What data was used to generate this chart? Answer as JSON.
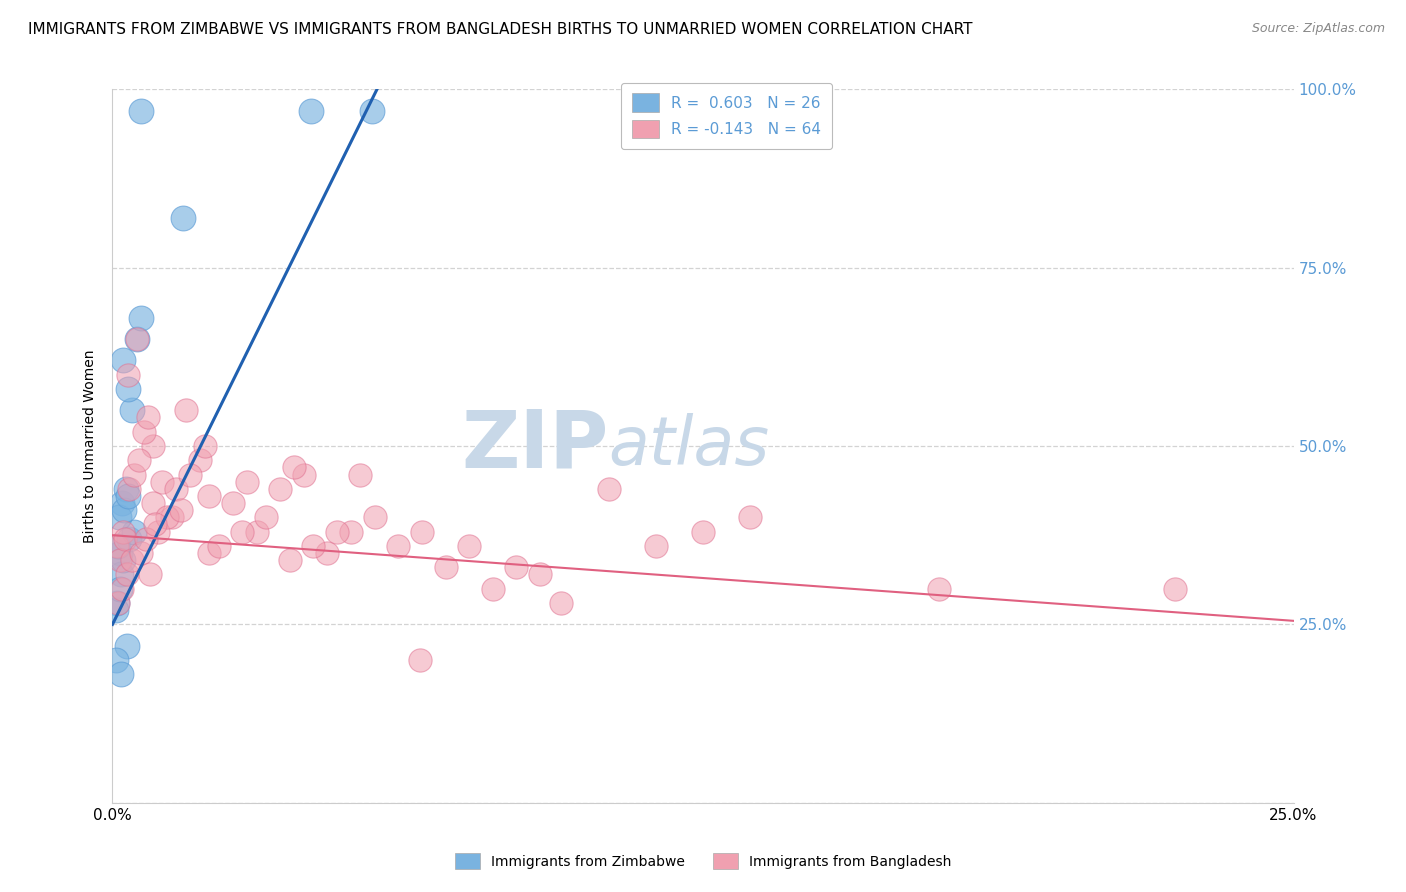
{
  "title": "IMMIGRANTS FROM ZIMBABWE VS IMMIGRANTS FROM BANGLADESH BIRTHS TO UNMARRIED WOMEN CORRELATION CHART",
  "source": "Source: ZipAtlas.com",
  "ylabel": "Births to Unmarried Women",
  "legend_entries": [
    {
      "label": "R =  0.603   N = 26",
      "color": "#a8c4e0"
    },
    {
      "label": "R = -0.143   N = 64",
      "color": "#f4a0b0"
    }
  ],
  "watermark_zip": "ZIP",
  "watermark_atlas": "atlas",
  "watermark_color": "#c8d8e8",
  "blue_color": "#7ab3e0",
  "blue_edge_color": "#5b9bd5",
  "pink_color": "#f0a0b0",
  "pink_edge_color": "#e07090",
  "blue_line_color": "#2060b0",
  "pink_line_color": "#e06080",
  "background_color": "#ffffff",
  "grid_color": "#c8c8c8",
  "ytick_color": "#5b9bd5",
  "ytick_vals": [
    25,
    50,
    75,
    100
  ],
  "ytick_labels": [
    "25.0%",
    "50.0%",
    "75.0%",
    "100.0%"
  ],
  "xtick_vals": [
    0,
    25
  ],
  "xtick_labels": [
    "0.0%",
    "25.0%"
  ],
  "zimbabwe_x": [
    0.6,
    1.5,
    4.2,
    5.5,
    0.15,
    0.18,
    0.22,
    0.12,
    0.35,
    0.45,
    0.2,
    0.28,
    0.1,
    0.08,
    0.16,
    0.42,
    0.32,
    0.22,
    0.52,
    0.6,
    0.3,
    0.08,
    0.18,
    0.14,
    0.24,
    0.33
  ],
  "zimbabwe_y": [
    97,
    82,
    97,
    97,
    35,
    32,
    34,
    36,
    37,
    38,
    42,
    44,
    28,
    27,
    30,
    55,
    58,
    62,
    65,
    68,
    22,
    20,
    18,
    40,
    41,
    43
  ],
  "bangladesh_x": [
    0.1,
    0.22,
    0.32,
    0.52,
    0.85,
    1.05,
    1.25,
    1.55,
    1.85,
    2.05,
    2.55,
    3.05,
    3.55,
    4.05,
    4.55,
    5.05,
    6.05,
    7.05,
    8.05,
    9.05,
    10.5,
    11.5,
    12.5,
    13.5,
    6.5,
    17.5,
    0.16,
    0.26,
    0.36,
    0.46,
    0.56,
    0.66,
    0.76,
    0.86,
    0.96,
    1.15,
    1.35,
    1.65,
    1.95,
    2.25,
    2.75,
    3.25,
    3.75,
    4.25,
    4.75,
    5.55,
    6.55,
    7.55,
    0.11,
    0.21,
    0.31,
    0.41,
    0.61,
    0.71,
    0.91,
    1.45,
    2.05,
    2.85,
    3.85,
    5.25,
    8.55,
    22.5,
    0.8,
    9.5
  ],
  "bangladesh_y": [
    36,
    38,
    60,
    65,
    50,
    45,
    40,
    55,
    48,
    35,
    42,
    38,
    44,
    46,
    35,
    38,
    36,
    33,
    30,
    32,
    44,
    36,
    38,
    40,
    20,
    30,
    34,
    37,
    44,
    46,
    48,
    52,
    54,
    42,
    38,
    40,
    44,
    46,
    50,
    36,
    38,
    40,
    34,
    36,
    38,
    40,
    38,
    36,
    28,
    30,
    32,
    34,
    35,
    37,
    39,
    41,
    43,
    45,
    47,
    46,
    33,
    30,
    32,
    28
  ],
  "xmin": 0,
  "xmax": 25,
  "ymin": 0,
  "ymax": 100,
  "blue_line_x0": 0.0,
  "blue_line_y0": 25.0,
  "blue_line_x1": 5.6,
  "blue_line_y1": 100.0,
  "pink_line_x0": 0.0,
  "pink_line_y0": 37.5,
  "pink_line_x1": 25.0,
  "pink_line_y1": 25.5,
  "title_fontsize": 11,
  "source_fontsize": 9,
  "legend_fontsize": 11,
  "tick_fontsize": 11,
  "ylabel_fontsize": 10
}
